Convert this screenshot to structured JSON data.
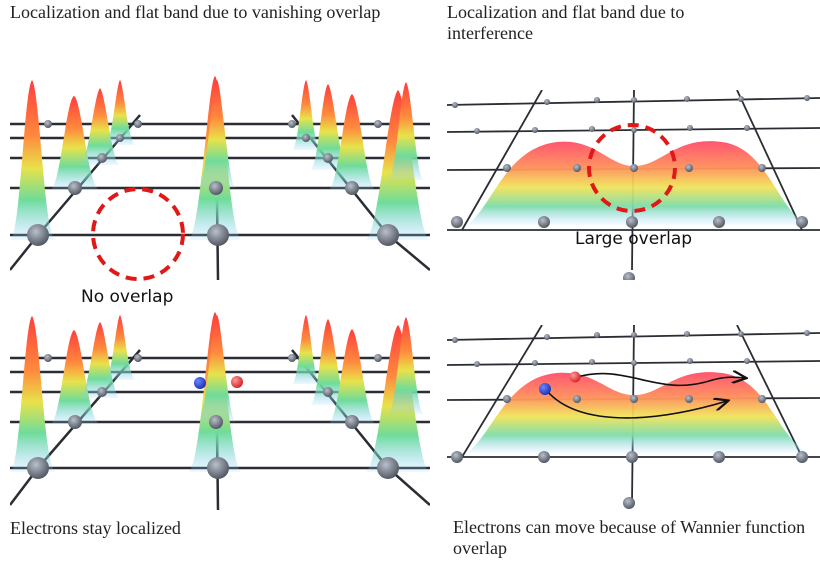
{
  "captions": {
    "top_left": "Localization and flat band due to vanishing overlap",
    "top_right": "Localization and flat band due to interference",
    "bottom_left": "Electrons stay localized",
    "bottom_right": "Electrons can move because of Wannier function overlap"
  },
  "labels": {
    "no_overlap": "No overlap",
    "large_overlap": "Large overlap"
  },
  "colors": {
    "peak_top": "#ff4a4a",
    "peak_mid": "#f2e04a",
    "peak_low": "#5fd6a8",
    "peak_base": "#7fc8ff",
    "lattice_line": "#2a2d33",
    "node": "#6e7480",
    "dashed_circle": "#e01818",
    "electron_blue": "#1f3fd6",
    "electron_red": "#ee3b3b"
  },
  "icons": [
    "wannier-peak",
    "lattice-node",
    "electron-dot",
    "motion-arrow"
  ]
}
